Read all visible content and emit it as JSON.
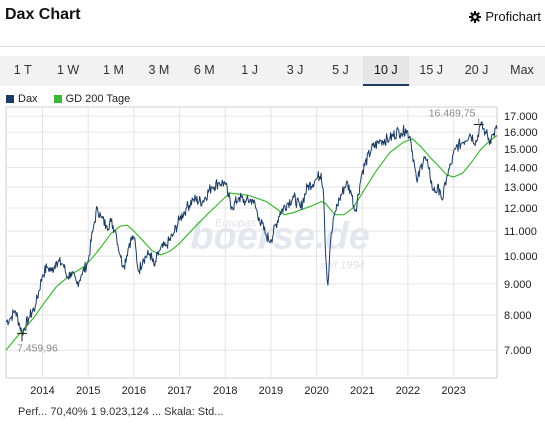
{
  "header": {
    "title": "Dax Chart",
    "profi_label": "Profichart"
  },
  "tabs": [
    "1 T",
    "1 W",
    "1 M",
    "3 M",
    "6 M",
    "1 J",
    "3 J",
    "5 J",
    "10 J",
    "15 J",
    "20 J",
    "Max"
  ],
  "active_tab": 8,
  "footer": {
    "text": "Perf... 70,40%  1 9.023,124 ...  Skala: Std..."
  },
  "chart_data": {
    "type": "line",
    "title": "",
    "xlabel": "",
    "ylabel": "",
    "y_scale": "log",
    "ylim": [
      6300,
      17600
    ],
    "xlim": [
      2013.2,
      2023.95
    ],
    "yticks": [
      7000,
      8000,
      9000,
      10000,
      11000,
      12000,
      13000,
      14000,
      15000,
      16000,
      17000
    ],
    "ytick_labels": [
      "7.000",
      "8.000",
      "9.000",
      "10.000",
      "11.000",
      "12.000",
      "13.000",
      "14.000",
      "15.000",
      "16.000",
      "17.000"
    ],
    "xticks": [
      2014,
      2015,
      2016,
      2017,
      2018,
      2019,
      2020,
      2021,
      2022,
      2023
    ],
    "xtick_labels": [
      "2014",
      "2015",
      "2016",
      "2017",
      "2018",
      "2019",
      "2020",
      "2021",
      "2022",
      "2023"
    ],
    "grid": true,
    "watermark": {
      "brand": "boerse.de",
      "top": "Europas",
      "bottom": "seit 1994"
    },
    "markers": {
      "min": {
        "label": "7.459,96",
        "x": 2013.55,
        "y": 7460
      },
      "max": {
        "label": "16.469,75",
        "x": 2023.55,
        "y": 16470
      }
    },
    "colors": {
      "series": "#1c3b63",
      "ma": "#3cb832",
      "grid": "#e4e4e4"
    },
    "series": [
      {
        "name": "Dax",
        "x": [
          2013.2,
          2013.3,
          2013.4,
          2013.5,
          2013.55,
          2013.7,
          2013.85,
          2014.0,
          2014.1,
          2014.2,
          2014.3,
          2014.45,
          2014.55,
          2014.62,
          2014.75,
          2014.85,
          2015.0,
          2015.1,
          2015.2,
          2015.28,
          2015.4,
          2015.5,
          2015.6,
          2015.7,
          2015.78,
          2015.9,
          2016.0,
          2016.1,
          2016.2,
          2016.35,
          2016.45,
          2016.55,
          2016.7,
          2016.85,
          2017.0,
          2017.15,
          2017.3,
          2017.5,
          2017.7,
          2017.85,
          2018.0,
          2018.05,
          2018.15,
          2018.3,
          2018.45,
          2018.6,
          2018.75,
          2018.9,
          2019.0,
          2019.2,
          2019.35,
          2019.5,
          2019.65,
          2019.8,
          2020.0,
          2020.1,
          2020.15,
          2020.2,
          2020.25,
          2020.3,
          2020.4,
          2020.5,
          2020.65,
          2020.75,
          2020.85,
          2021.0,
          2021.2,
          2021.4,
          2021.6,
          2021.8,
          2021.85,
          2021.95,
          2022.05,
          2022.15,
          2022.2,
          2022.35,
          2022.45,
          2022.55,
          2022.7,
          2022.75,
          2022.85,
          2022.95,
          2023.05,
          2023.2,
          2023.35,
          2023.5,
          2023.58,
          2023.7,
          2023.8,
          2023.87,
          2023.95
        ],
        "y": [
          7800,
          7900,
          8150,
          7700,
          7460,
          7900,
          8300,
          9300,
          9600,
          9450,
          9800,
          9700,
          9200,
          9400,
          9000,
          9300,
          9800,
          11000,
          12000,
          11600,
          11200,
          11400,
          11000,
          10000,
          9600,
          10500,
          10800,
          9400,
          9900,
          10100,
          9600,
          10200,
          10400,
          10800,
          11500,
          12000,
          12400,
          12300,
          13000,
          13200,
          13200,
          12700,
          12000,
          12500,
          12300,
          12400,
          11500,
          10800,
          10600,
          11800,
          12200,
          12500,
          12000,
          13000,
          13400,
          13700,
          12800,
          10000,
          8900,
          10500,
          11800,
          12400,
          13200,
          12800,
          11800,
          13800,
          15000,
          15500,
          15600,
          16100,
          15900,
          16200,
          15700,
          14000,
          13200,
          14600,
          14000,
          12800,
          12900,
          12300,
          13500,
          14200,
          15100,
          15400,
          15900,
          15400,
          16470,
          16000,
          15500,
          15900,
          16200
        ]
      },
      {
        "name": "GD 200 Tage",
        "x": [
          2013.2,
          2013.4,
          2013.6,
          2013.8,
          2014.0,
          2014.3,
          2014.6,
          2014.9,
          2015.1,
          2015.3,
          2015.5,
          2015.7,
          2015.85,
          2016.0,
          2016.2,
          2016.4,
          2016.6,
          2016.8,
          2017.0,
          2017.3,
          2017.6,
          2017.9,
          2018.1,
          2018.3,
          2018.5,
          2018.7,
          2018.9,
          2019.1,
          2019.3,
          2019.5,
          2019.7,
          2019.9,
          2020.1,
          2020.2,
          2020.4,
          2020.6,
          2020.8,
          2021.0,
          2021.3,
          2021.6,
          2021.9,
          2022.1,
          2022.3,
          2022.5,
          2022.7,
          2022.85,
          2023.0,
          2023.2,
          2023.4,
          2023.6,
          2023.8,
          2023.95
        ],
        "y": [
          7000,
          7300,
          7600,
          7900,
          8300,
          8900,
          9300,
          9600,
          9950,
          10400,
          10900,
          11200,
          11250,
          11000,
          10600,
          10200,
          10050,
          10200,
          10500,
          11100,
          11700,
          12300,
          12700,
          12650,
          12600,
          12450,
          12300,
          12000,
          11700,
          11800,
          11950,
          12100,
          12300,
          12200,
          11700,
          11700,
          12000,
          12700,
          13800,
          14800,
          15400,
          15600,
          15100,
          14500,
          14000,
          13600,
          13500,
          13700,
          14300,
          15000,
          15500,
          15800
        ]
      }
    ]
  }
}
